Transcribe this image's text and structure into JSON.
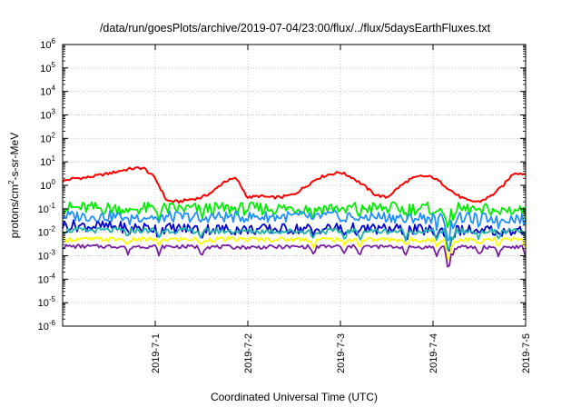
{
  "chart_data": {
    "type": "line",
    "title": "/data/run/goesPlots/archive/2019-07-04/23:00/flux/../flux/5daysEarthFluxes.txt",
    "xlabel": "Coordinated Universal Time (UTC)",
    "ylabel": {
      "pre": "protons/cm",
      "sup": "2",
      "post": "-s-sr-MeV"
    },
    "yscale": "log",
    "ylim": [
      1e-06,
      1000000.0
    ],
    "xlim": [
      "2019-06-30",
      "2019-07-05"
    ],
    "grid": true,
    "legend": "none",
    "y_ticks": [
      {
        "value": 1e-06,
        "base": "10",
        "exp": "-6"
      },
      {
        "value": 1e-05,
        "base": "10",
        "exp": "-5"
      },
      {
        "value": 0.0001,
        "base": "10",
        "exp": "-4"
      },
      {
        "value": 0.001,
        "base": "10",
        "exp": "-3"
      },
      {
        "value": 0.01,
        "base": "10",
        "exp": "-2"
      },
      {
        "value": 0.1,
        "base": "10",
        "exp": "-1"
      },
      {
        "value": 1,
        "base": "10",
        "exp": "0"
      },
      {
        "value": 10.0,
        "base": "10",
        "exp": "1"
      },
      {
        "value": 100.0,
        "base": "10",
        "exp": "2"
      },
      {
        "value": 1000.0,
        "base": "10",
        "exp": "3"
      },
      {
        "value": 10000.0,
        "base": "10",
        "exp": "4"
      },
      {
        "value": 100000.0,
        "base": "10",
        "exp": "5"
      },
      {
        "value": 1000000.0,
        "base": "10",
        "exp": "6"
      }
    ],
    "x_ticks": [
      {
        "date": "2019-07-01",
        "label": "2019-7-1"
      },
      {
        "date": "2019-07-02",
        "label": "2019-7-2"
      },
      {
        "date": "2019-07-03",
        "label": "2019-7-3"
      },
      {
        "date": "2019-07-04",
        "label": "2019-7-4"
      },
      {
        "date": "2019-07-05",
        "label": "2019-7-5"
      }
    ],
    "series": [
      {
        "color": "#ff0000",
        "x": [
          "2019-06-30T00:00",
          "2019-06-30T03:00",
          "2019-06-30T06:00",
          "2019-06-30T09:00",
          "2019-06-30T12:00",
          "2019-06-30T15:00",
          "2019-06-30T18:00",
          "2019-06-30T21:00",
          "2019-07-01T00:00",
          "2019-07-01T03:00",
          "2019-07-01T06:00",
          "2019-07-01T09:00",
          "2019-07-01T12:00",
          "2019-07-01T15:00",
          "2019-07-01T18:00",
          "2019-07-01T21:00",
          "2019-07-02T00:00",
          "2019-07-02T03:00",
          "2019-07-02T06:00",
          "2019-07-02T09:00",
          "2019-07-02T12:00",
          "2019-07-02T15:00",
          "2019-07-02T18:00",
          "2019-07-02T21:00",
          "2019-07-03T00:00",
          "2019-07-03T03:00",
          "2019-07-03T06:00",
          "2019-07-03T09:00",
          "2019-07-03T12:00",
          "2019-07-03T15:00",
          "2019-07-03T18:00",
          "2019-07-03T21:00",
          "2019-07-04T00:00",
          "2019-07-04T03:00",
          "2019-07-04T06:00",
          "2019-07-04T09:00",
          "2019-07-04T12:00",
          "2019-07-04T15:00",
          "2019-07-04T18:00",
          "2019-07-04T21:00",
          "2019-07-05T00:00"
        ],
        "values": [
          1.5,
          2.0,
          2.1,
          2.6,
          3.2,
          4.2,
          5.2,
          5.5,
          2.0,
          0.22,
          0.2,
          0.25,
          0.3,
          0.55,
          1.5,
          2.0,
          0.3,
          0.35,
          0.3,
          0.32,
          0.42,
          0.9,
          2.0,
          2.9,
          3.6,
          2.2,
          1.0,
          0.4,
          0.3,
          0.8,
          1.8,
          2.5,
          2.2,
          1.0,
          0.4,
          0.22,
          0.2,
          0.35,
          0.9,
          3.5,
          3.0
        ]
      },
      {
        "color": "#00ee00",
        "x": [
          "2019-06-30T00:00",
          "2019-07-01T00:00",
          "2019-07-02T00:00",
          "2019-07-03T00:00",
          "2019-07-04T00:00",
          "2019-07-05T00:00"
        ],
        "values": [
          0.11,
          0.1,
          0.1,
          0.11,
          0.1,
          0.09
        ]
      },
      {
        "color": "#1e90ff",
        "x": [
          "2019-06-30T00:00",
          "2019-07-01T00:00",
          "2019-07-02T00:00",
          "2019-07-03T00:00",
          "2019-07-04T00:00",
          "2019-07-05T00:00"
        ],
        "values": [
          0.05,
          0.045,
          0.045,
          0.05,
          0.04,
          0.04
        ]
      },
      {
        "color": "#0000cd",
        "x": [
          "2019-06-30T00:00",
          "2019-07-01T00:00",
          "2019-07-02T00:00",
          "2019-07-03T00:00",
          "2019-07-04T00:00",
          "2019-07-05T00:00"
        ],
        "values": [
          0.02,
          0.015,
          0.013,
          0.015,
          0.012,
          0.012
        ]
      },
      {
        "color": "#20b2aa",
        "x": [
          "2019-06-30T00:00",
          "2019-07-01T00:00",
          "2019-07-02T00:00",
          "2019-07-03T00:00",
          "2019-07-04T00:00",
          "2019-07-05T00:00"
        ],
        "values": [
          0.012,
          0.012,
          0.011,
          0.011,
          0.011,
          0.011
        ]
      },
      {
        "color": "#ffff00",
        "x": [
          "2019-06-30T00:00",
          "2019-07-01T00:00",
          "2019-07-02T00:00",
          "2019-07-03T00:00",
          "2019-07-04T00:00",
          "2019-07-05T00:00"
        ],
        "values": [
          0.005,
          0.005,
          0.005,
          0.005,
          0.0048,
          0.0048
        ]
      },
      {
        "color": "#7b1fa2",
        "x": [
          "2019-06-30T00:00",
          "2019-07-01T00:00",
          "2019-07-02T00:00",
          "2019-07-03T00:00",
          "2019-07-04T00:00",
          "2019-07-05T00:00"
        ],
        "values": [
          0.0025,
          0.0025,
          0.0023,
          0.0025,
          0.0023,
          0.0023
        ]
      }
    ]
  }
}
